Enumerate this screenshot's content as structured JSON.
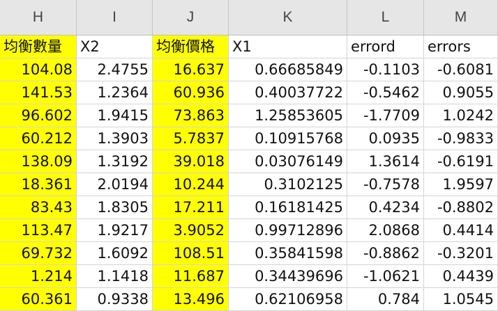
{
  "columns": [
    "H",
    "I",
    "J",
    "K",
    "L",
    "M"
  ],
  "header_row": [
    "均衡數量",
    "X2",
    "均衡價格",
    "X1",
    "errord",
    "errors"
  ],
  "rows": [
    [
      "104.08",
      "2.4755",
      "16.637",
      "0.66685849",
      "-0.1103",
      "-0.6081"
    ],
    [
      "141.53",
      "1.2364",
      "60.936",
      "0.40037722",
      "-0.5462",
      "0.9055"
    ],
    [
      "96.602",
      "1.9415",
      "73.863",
      "1.25853605",
      "-1.7709",
      "1.0242"
    ],
    [
      "60.212",
      "1.3903",
      "5.7837",
      "0.10915768",
      "0.0935",
      "-0.9833"
    ],
    [
      "138.09",
      "1.3192",
      "39.018",
      "0.03076149",
      "1.3614",
      "-0.6191"
    ],
    [
      "18.361",
      "2.0194",
      "10.244",
      "0.3102125",
      "-0.7578",
      "1.9597"
    ],
    [
      "83.43",
      "1.8305",
      "17.211",
      "0.16181425",
      "0.4234",
      "-0.8802"
    ],
    [
      "113.47",
      "1.9217",
      "3.9052",
      "0.99712896",
      "2.0868",
      "0.4414"
    ],
    [
      "69.732",
      "1.6092",
      "108.51",
      "0.35841598",
      "-0.8862",
      "-0.3201"
    ],
    [
      "1.214",
      "1.1418",
      "11.687",
      "0.34439696",
      "-1.0621",
      "0.4439"
    ],
    [
      "60.361",
      "0.9338",
      "13.496",
      "0.62106958",
      "0.784",
      "1.0545"
    ]
  ],
  "colors": {
    "highlight": "#ffff00",
    "header_bg": "#e6e6e6",
    "gridline": "#d4d4d4"
  }
}
